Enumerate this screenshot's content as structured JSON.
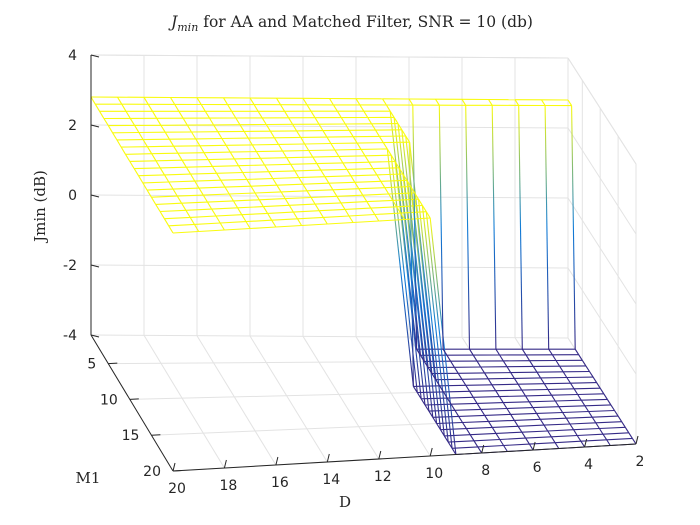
{
  "chart_data": {
    "type": "surface",
    "title": {
      "symbol": "J",
      "subscript": "min",
      "text": " for AA and Matched Filter, SNR = 10 (db)"
    },
    "xlabel": "D",
    "ylabel": "M1",
    "zlabel": "Jmin (dB)",
    "x_ticks": [
      20,
      18,
      16,
      14,
      12,
      10,
      8,
      6,
      4,
      2
    ],
    "y_ticks": [
      5,
      10,
      15,
      20
    ],
    "z_ticks": [
      4,
      2,
      0,
      -2,
      -4
    ],
    "xlim": [
      2,
      20
    ],
    "ylim": [
      1,
      20
    ],
    "zlim": [
      -4,
      4
    ],
    "grid": true,
    "colormap": "parula",
    "plateau_value": 2.8,
    "floor_value": -4.0
  }
}
